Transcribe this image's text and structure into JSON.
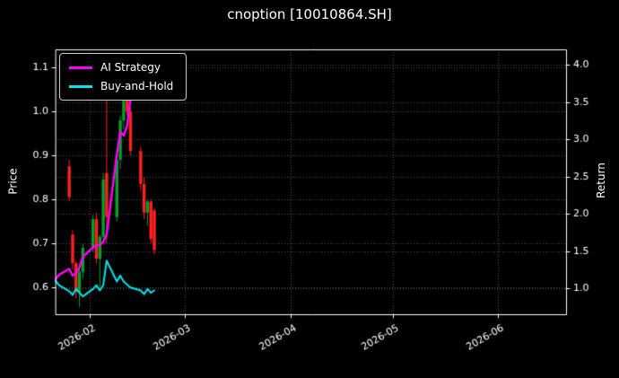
{
  "figure": {
    "title": "cnoption [10010864.SH]",
    "background": "#000000",
    "text_color": "#ffffff",
    "left_axis_label": "Price",
    "right_axis_label": "Return"
  },
  "legend": {
    "items": [
      {
        "label": "AI Strategy",
        "color": "#ff00ff"
      },
      {
        "label": "Buy-and-Hold",
        "color": "#00e5ee"
      }
    ]
  },
  "chart_data": {
    "type": "candlestick+line",
    "title": "cnoption [10010864.SH]",
    "legend_position": "upper-left",
    "grid": "dotted",
    "x_axis": {
      "tick_labels": [
        "2026-02",
        "2026-03",
        "2026-04",
        "2026-05",
        "2026-06"
      ],
      "range": [
        "2026-01-22",
        "2026-06-21"
      ]
    },
    "price_axis": {
      "label": "Price",
      "ticks": [
        0.6,
        0.7,
        0.8,
        0.9,
        1.0,
        1.1
      ],
      "range": [
        0.539,
        1.141
      ]
    },
    "return_axis": {
      "label": "Return",
      "ticks": [
        1.0,
        1.5,
        2.0,
        2.5,
        3.0,
        3.5,
        4.0
      ],
      "range": [
        0.651,
        4.205
      ]
    },
    "colors": {
      "up": "#00a02c",
      "down": "#ff2020",
      "grid": "#4d4d4d",
      "axis": "#ffffff",
      "text": "#ffffff"
    },
    "candles": [
      [
        "2026-01-26",
        0.875,
        0.89,
        0.795,
        0.805
      ],
      [
        "2026-01-27",
        0.72,
        0.73,
        0.64,
        0.655
      ],
      [
        "2026-01-28",
        0.655,
        0.66,
        0.575,
        0.59
      ],
      [
        "2026-01-29",
        0.59,
        0.645,
        0.555,
        0.635
      ],
      [
        "2026-01-30",
        0.635,
        0.7,
        0.62,
        0.69
      ],
      [
        "2026-02-02",
        0.69,
        0.765,
        0.68,
        0.755
      ],
      [
        "2026-02-03",
        0.755,
        0.77,
        0.655,
        0.665
      ],
      [
        "2026-02-04",
        0.665,
        0.72,
        0.6,
        0.715
      ],
      [
        "2026-02-05",
        0.715,
        0.86,
        0.7,
        0.845
      ],
      [
        "2026-02-06",
        0.86,
        1.07,
        0.7,
        0.76
      ],
      [
        "2026-02-09",
        0.76,
        0.9,
        0.75,
        0.89
      ],
      [
        "2026-02-10",
        0.89,
        0.99,
        0.87,
        0.98
      ],
      [
        "2026-02-11",
        0.98,
        1.06,
        0.96,
        1.04
      ],
      [
        "2026-02-12",
        1.04,
        1.065,
        0.99,
        1.0
      ],
      [
        "2026-02-13",
        1.0,
        1.01,
        0.9,
        0.91
      ],
      [
        "2026-02-16",
        0.91,
        0.92,
        0.82,
        0.835
      ],
      [
        "2026-02-17",
        0.835,
        0.85,
        0.755,
        0.77
      ],
      [
        "2026-02-18",
        0.77,
        0.8,
        0.74,
        0.795
      ],
      [
        "2026-02-19",
        0.795,
        0.8,
        0.7,
        0.71
      ],
      [
        "2026-02-20",
        0.775,
        0.78,
        0.675,
        0.685
      ]
    ],
    "series": [
      {
        "name": "AI Strategy",
        "axis": "return",
        "color": "#ff00ff",
        "line_width": 2.4,
        "points": [
          [
            "2026-01-22",
            1.12
          ],
          [
            "2026-01-23",
            1.18
          ],
          [
            "2026-01-26",
            1.26
          ],
          [
            "2026-01-27",
            1.17
          ],
          [
            "2026-01-28",
            1.2
          ],
          [
            "2026-01-29",
            1.28
          ],
          [
            "2026-01-30",
            1.42
          ],
          [
            "2026-02-02",
            1.55
          ],
          [
            "2026-02-03",
            1.58
          ],
          [
            "2026-02-04",
            1.58
          ],
          [
            "2026-02-05",
            1.62
          ],
          [
            "2026-02-06",
            1.72
          ],
          [
            "2026-02-09",
            2.8
          ],
          [
            "2026-02-10",
            3.1
          ],
          [
            "2026-02-11",
            3.05
          ],
          [
            "2026-02-12",
            3.18
          ],
          [
            "2026-02-13",
            3.55
          ],
          [
            "2026-02-16",
            3.95
          ]
        ]
      },
      {
        "name": "Buy-and-Hold",
        "axis": "return",
        "color": "#00e5ee",
        "line_width": 2.0,
        "points": [
          [
            "2026-01-22",
            1.1
          ],
          [
            "2026-01-23",
            1.04
          ],
          [
            "2026-01-26",
            0.96
          ],
          [
            "2026-01-27",
            0.91
          ],
          [
            "2026-01-28",
            0.99
          ],
          [
            "2026-01-29",
            0.94
          ],
          [
            "2026-01-30",
            0.89
          ],
          [
            "2026-02-02",
            0.99
          ],
          [
            "2026-02-03",
            1.04
          ],
          [
            "2026-02-04",
            0.97
          ],
          [
            "2026-02-05",
            1.04
          ],
          [
            "2026-02-06",
            1.37
          ],
          [
            "2026-02-09",
            1.09
          ],
          [
            "2026-02-10",
            1.17
          ],
          [
            "2026-02-11",
            1.09
          ],
          [
            "2026-02-12",
            1.05
          ],
          [
            "2026-02-13",
            1.01
          ],
          [
            "2026-02-16",
            0.97
          ],
          [
            "2026-02-17",
            0.92
          ],
          [
            "2026-02-18",
            0.99
          ],
          [
            "2026-02-19",
            0.94
          ],
          [
            "2026-02-20",
            0.97
          ]
        ]
      }
    ]
  }
}
